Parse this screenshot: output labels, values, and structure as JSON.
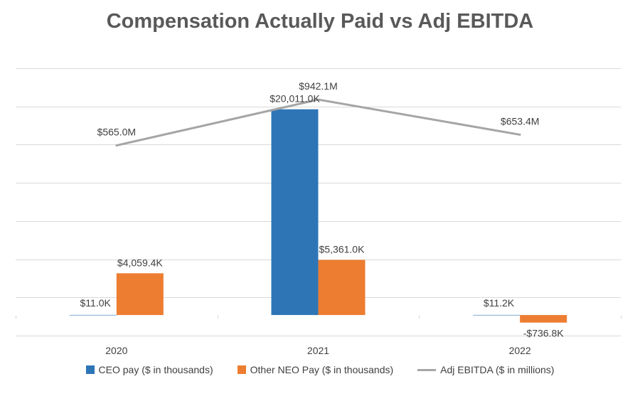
{
  "chart_data": {
    "type": "bar",
    "title": "Compensation Actually Paid vs Adj EBITDA",
    "categories": [
      "2020",
      "2021",
      "2022"
    ],
    "series": [
      {
        "name": "CEO pay ($ in thousands)",
        "kind": "bar",
        "color": "#2e75b6",
        "values": [
          11.0,
          20011.0,
          11.2
        ],
        "labels": [
          "$11.0K",
          "$20,011.0K",
          "$11.2K"
        ]
      },
      {
        "name": "Other NEO Pay ($ in thousands)",
        "kind": "bar",
        "color": "#ed7d31",
        "values": [
          4059.4,
          5361.0,
          -736.8
        ],
        "labels": [
          "$4,059.4K",
          "$5,361.0K",
          "-$736.8K"
        ]
      },
      {
        "name": "Adj EBITDA ($ in millions)",
        "kind": "line",
        "color": "#a5a5a5",
        "values": [
          565.0,
          942.1,
          653.4
        ],
        "labels": [
          "$565.0M",
          "$942.1M",
          "$653.4M"
        ]
      }
    ],
    "bar_axis_range": [
      -2000,
      24000
    ],
    "line_axis_range": [
      -1000,
      1200
    ],
    "gridlines": true,
    "legend_position": "bottom"
  }
}
